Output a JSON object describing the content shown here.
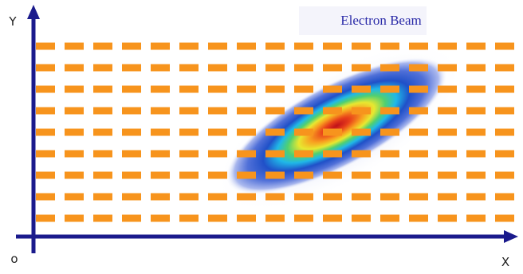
{
  "labels": {
    "title": "Electron Beam",
    "y_axis": "Y",
    "origin": "o",
    "x_axis": "X"
  }
}
